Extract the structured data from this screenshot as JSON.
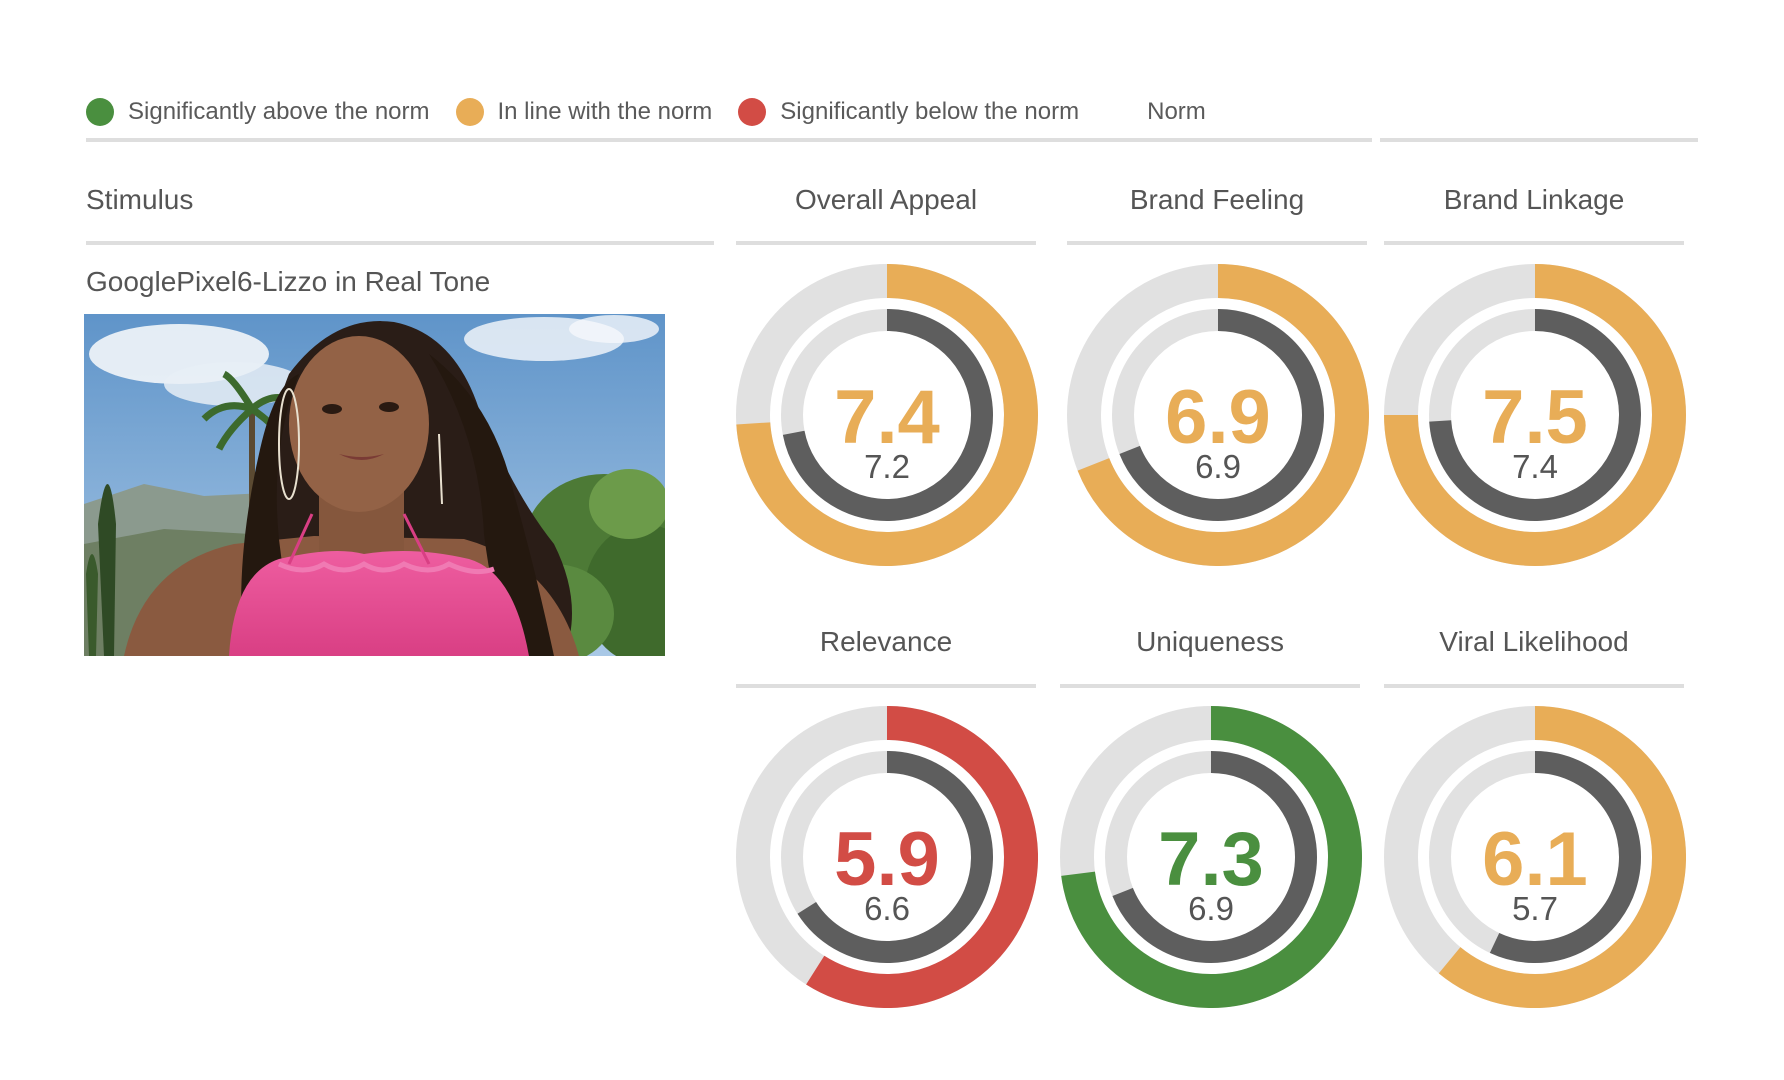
{
  "colors": {
    "above": "#4a8f3f",
    "inline": "#e8ad57",
    "below": "#d24c45",
    "track": "#e1e1e1",
    "norm": "#5e5e5e"
  },
  "legend": {
    "above_label": "Significantly above the norm",
    "inline_label": "In line with the norm",
    "below_label": "Significantly below the norm",
    "norm_label": "Norm"
  },
  "stimulus": {
    "header": "Stimulus",
    "name": "GooglePixel6-Lizzo in Real Tone"
  },
  "chart_data": {
    "type": "donut",
    "scale_max": 10,
    "metrics": [
      {
        "label": "Overall Appeal",
        "value": 7.4,
        "norm": 7.2,
        "status": "inline"
      },
      {
        "label": "Brand Feeling",
        "value": 6.9,
        "norm": 6.9,
        "status": "inline"
      },
      {
        "label": "Brand Linkage",
        "value": 7.5,
        "norm": 7.4,
        "status": "inline"
      },
      {
        "label": "Relevance",
        "value": 5.9,
        "norm": 6.6,
        "status": "below"
      },
      {
        "label": "Uniqueness",
        "value": 7.3,
        "norm": 6.9,
        "status": "above"
      },
      {
        "label": "Viral Likelihood",
        "value": 6.1,
        "norm": 5.7,
        "status": "inline"
      }
    ]
  }
}
